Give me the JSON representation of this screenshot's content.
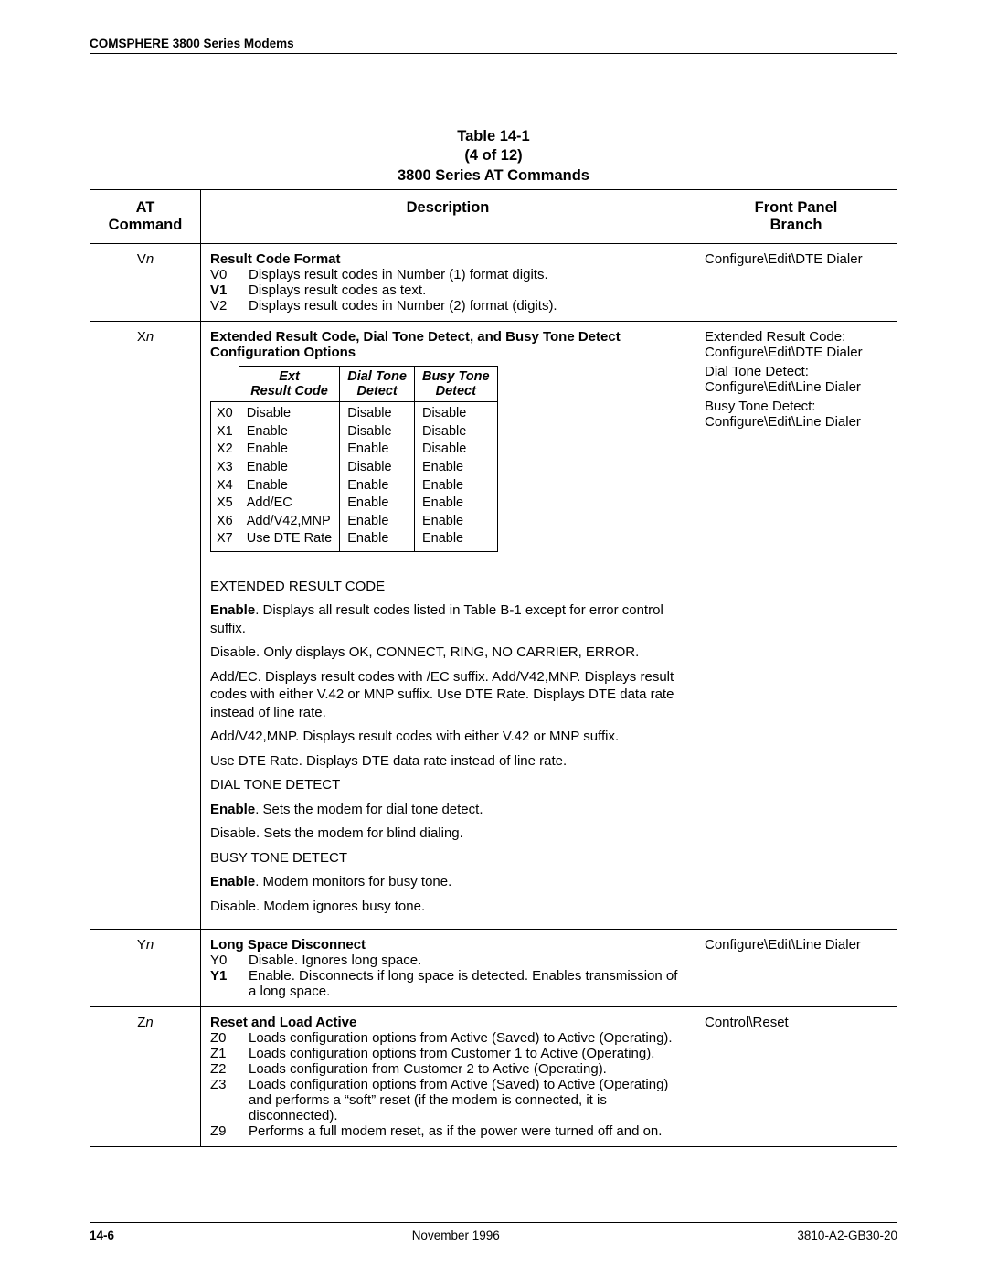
{
  "header": "COMSPHERE 3800 Series Modems",
  "caption": {
    "line1": "Table 14-1",
    "line2": "(4 of 12)",
    "line3": "3800 Series AT Commands"
  },
  "columns": {
    "cmd": "AT\nCommand",
    "desc": "Description",
    "branch": "Front Panel\nBranch"
  },
  "vn": {
    "cmd_letter": "V",
    "cmd_var": "n",
    "title": "Result Code Format",
    "opts": [
      {
        "k": "V0",
        "v": "Displays result codes in Number (1) format digits."
      },
      {
        "k": "V1",
        "v": "Displays result codes as text.",
        "bold": true
      },
      {
        "k": "V2",
        "v": "Displays result codes in Number (2) format (digits)."
      }
    ],
    "branch": "Configure\\Edit\\DTE Dialer"
  },
  "xn": {
    "cmd_letter": "X",
    "cmd_var": "n",
    "title": "Extended Result Code, Dial Tone Detect, and Busy Tone Detect Configuration Options",
    "subheaders": {
      "c1": "Ext\nResult Code",
      "c2": "Dial Tone\nDetect",
      "c3": "Busy Tone\nDetect"
    },
    "rows": [
      {
        "k": "X0",
        "a": "Disable",
        "b": "Disable",
        "c": "Disable"
      },
      {
        "k": "X1",
        "a": "Enable",
        "b": "Disable",
        "c": "Disable"
      },
      {
        "k": "X2",
        "a": "Enable",
        "b": "Enable",
        "c": "Disable"
      },
      {
        "k": "X3",
        "a": "Enable",
        "b": "Disable",
        "c": "Enable"
      },
      {
        "k": "X4",
        "a": "Enable",
        "b": "Enable",
        "c": "Enable"
      },
      {
        "k": "X5",
        "a": "Add/EC",
        "b": "Enable",
        "c": "Enable"
      },
      {
        "k": "X6",
        "a": "Add/V42,MNP",
        "b": "Enable",
        "c": "Enable"
      },
      {
        "k": "X7",
        "a": "Use DTE Rate",
        "b": "Enable",
        "c": "Enable"
      }
    ],
    "sec1_label": "EXTENDED RESULT CODE",
    "sec1_enable_prefix": "Enable",
    "sec1_enable_rest": ". Displays all result codes listed in Table B-1 except for error control suffix.",
    "sec1_disable": "Disable. Only displays OK, CONNECT, RING, NO CARRIER, ERROR.",
    "sec1_addec": "Add/EC. Displays result codes with /EC suffix. Add/V42,MNP. Displays result codes with either V.42 or MNP suffix. Use DTE Rate. Displays DTE data rate instead of line rate.",
    "sec1_addv42": "Add/V42,MNP. Displays result codes with either V.42 or MNP suffix.",
    "sec1_usedte": "Use DTE Rate. Displays DTE data rate instead of line rate.",
    "sec2_label": "DIAL TONE DETECT",
    "sec2_enable_prefix": "Enable",
    "sec2_enable_rest": ". Sets the modem for dial tone detect.",
    "sec2_disable": "Disable. Sets the modem for blind dialing.",
    "sec3_label": "BUSY TONE DETECT",
    "sec3_enable_prefix": "Enable",
    "sec3_enable_rest": ". Modem monitors for busy tone.",
    "sec3_disable": "Disable. Modem ignores busy tone.",
    "branch1_label": "Extended Result Code:",
    "branch1_path": "Configure\\Edit\\DTE Dialer",
    "branch2_label": "Dial Tone Detect:",
    "branch2_path": "Configure\\Edit\\Line Dialer",
    "branch3_label": "Busy Tone Detect:",
    "branch3_path": "Configure\\Edit\\Line Dialer"
  },
  "yn": {
    "cmd_letter": "Y",
    "cmd_var": "n",
    "title": "Long Space Disconnect",
    "opts": [
      {
        "k": "Y0",
        "v": "Disable. Ignores long space."
      },
      {
        "k": "Y1",
        "v": "Enable. Disconnects if long space is detected. Enables transmission of a long space.",
        "bold": true
      }
    ],
    "branch": "Configure\\Edit\\Line Dialer"
  },
  "zn": {
    "cmd_letter": "Z",
    "cmd_var": "n",
    "title": "Reset and Load Active",
    "opts": [
      {
        "k": "Z0",
        "v": "Loads configuration options from Active (Saved) to Active (Operating)."
      },
      {
        "k": "Z1",
        "v": "Loads configuration options from Customer 1 to Active (Operating)."
      },
      {
        "k": "Z2",
        "v": "Loads configuration from Customer 2 to Active (Operating)."
      },
      {
        "k": "Z3",
        "v": "Loads configuration options from Active (Saved) to Active (Operating) and performs a “soft” reset (if the modem is connected, it is disconnected)."
      },
      {
        "k": "Z9",
        "v": "Performs a full modem reset, as if the power were turned off and on."
      }
    ],
    "branch": "Control\\Reset"
  },
  "footer": {
    "page": "14-6",
    "center": "November 1996",
    "right": "3810-A2-GB30-20"
  }
}
